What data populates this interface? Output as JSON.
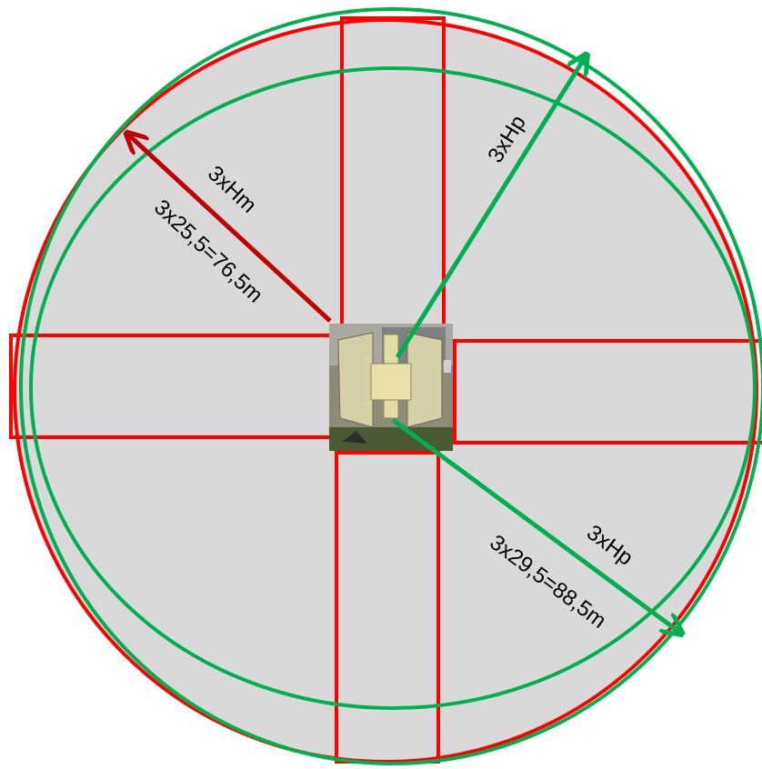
{
  "labels": {
    "red_radius_top": "3xHm",
    "red_radius_bottom": "3x25,5=76,5m",
    "green_radius_upper": "3xHp",
    "green_radius_lower_top": "3xHp",
    "green_radius_lower_bottom": "3x29,5=88,5m"
  },
  "colors": {
    "red": "#ff0000",
    "dark_red": "#c00000",
    "green": "#00b050",
    "fill": "#d9d9d9"
  },
  "icons": {
    "center_photo": "hangar-building-photo"
  }
}
